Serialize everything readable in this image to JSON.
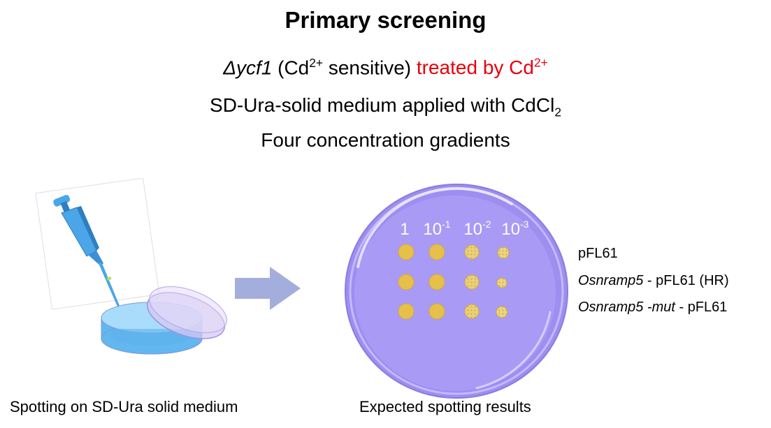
{
  "title": "Primary screening",
  "line1": {
    "strain": "Δycf1",
    "open": " (Cd",
    "open_sup": "2+",
    "sensitive": " sensitive) ",
    "treated": "treated by Cd",
    "treated_sup": "2+"
  },
  "line2": {
    "text": "SD-Ura-solid medium applied with CdCl",
    "sub": "2"
  },
  "line3": "Four concentration gradients",
  "left_caption": "Spotting on SD-Ura solid medium",
  "right_caption": "Expected spotting results",
  "dilutions": [
    {
      "base": "1",
      "exp": ""
    },
    {
      "base": "10",
      "exp": "-1"
    },
    {
      "base": "10",
      "exp": "-2"
    },
    {
      "base": "10",
      "exp": "-3"
    }
  ],
  "legend": {
    "row1": "pFL61",
    "row2_italic": "Osnramp5",
    "row2_rest": " - pFL61 (HR)",
    "row3_italic": "Osnramp5 -mut",
    "row3_rest": " - pFL61"
  },
  "colors": {
    "plate_outer": "#9d8ef0",
    "plate_inner": "#a99af5",
    "colony": "#e6c04a",
    "arrow": "#a4aedc",
    "accent_red": "#e8000b",
    "pipette_blue": "#4aa6e8",
    "dish_blue": "#7cc6f5"
  },
  "icons": [
    "pipette-icon",
    "petri-dish-icon",
    "right-arrow-icon",
    "agar-plate-icon"
  ]
}
